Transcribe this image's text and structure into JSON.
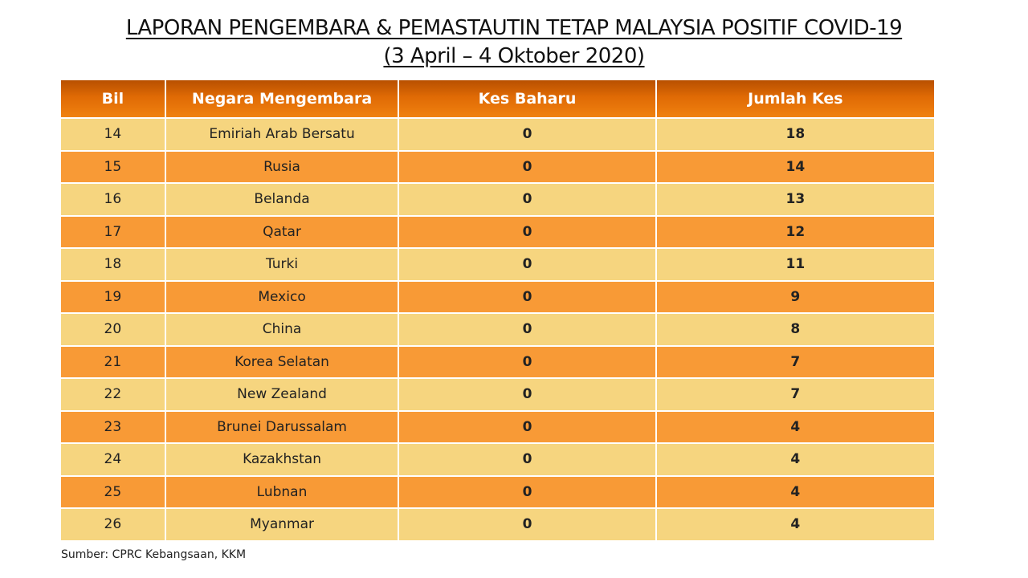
{
  "title_line1": "LAPORAN PENGEMBARA & PEMASTAUTIN TETAP MALAYSIA POSITIF COVID-19",
  "title_line2": "(3 April – 4 Oktober 2020)",
  "headers": [
    "Bil",
    "Negara Mengembara",
    "Kes Baharu",
    "Jumlah Kes"
  ],
  "rows": [
    [
      "14",
      "Emiriah Arab Bersatu",
      "0",
      "18"
    ],
    [
      "15",
      "Rusia",
      "0",
      "14"
    ],
    [
      "16",
      "Belanda",
      "0",
      "13"
    ],
    [
      "17",
      "Qatar",
      "0",
      "12"
    ],
    [
      "18",
      "Turki",
      "0",
      "11"
    ],
    [
      "19",
      "Mexico",
      "0",
      "9"
    ],
    [
      "20",
      "China",
      "0",
      "8"
    ],
    [
      "21",
      "Korea Selatan",
      "0",
      "7"
    ],
    [
      "22",
      "New Zealand",
      "0",
      "7"
    ],
    [
      "23",
      "Brunei Darussalam",
      "0",
      "4"
    ],
    [
      "24",
      "Kazakhstan",
      "0",
      "4"
    ],
    [
      "25",
      "Lubnan",
      "0",
      "4"
    ],
    [
      "26",
      "Myanmar",
      "0",
      "4"
    ]
  ],
  "source": "Sumber: CPRC Kebangsaan, KKM",
  "colors": {
    "header": "#e06a05",
    "row_light": "#f6d57f",
    "row_dark": "#f89a36"
  }
}
